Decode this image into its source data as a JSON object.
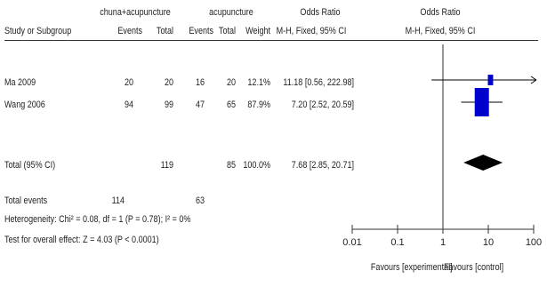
{
  "header": {
    "group1": "chuna+acupuncture",
    "group2": "acupuncture",
    "or_title_left": "Odds Ratio",
    "or_title_right": "Odds Ratio",
    "col_study": "Study or Subgroup",
    "col_events1": "Events",
    "col_total1": "Total",
    "col_events2": "Events",
    "col_total2": "Total",
    "col_weight": "Weight",
    "col_method_left": "M-H, Fixed, 95% CI",
    "col_method_right": "M-H, Fixed, 95% CI"
  },
  "studies": [
    {
      "name": "Ma 2009",
      "events1": "20",
      "total1": "20",
      "events2": "16",
      "total2": "20",
      "weight": "12.1%",
      "ci_text": "11.18 [0.56, 222.98]"
    },
    {
      "name": "Wang 2006",
      "events1": "94",
      "total1": "99",
      "events2": "47",
      "total2": "65",
      "weight": "87.9%",
      "ci_text": "7.20 [2.52, 20.59]"
    }
  ],
  "total": {
    "label": "Total (95% CI)",
    "total1": "119",
    "total2": "85",
    "weight": "100.0%",
    "ci_text": "7.68 [2.85, 20.71]"
  },
  "total_events": {
    "label": "Total events",
    "events1": "114",
    "events2": "63"
  },
  "heterogeneity": "Heterogeneity: Chi² = 0.08, df = 1 (P = 0.78); I² = 0%",
  "overall_effect": "Test for overall effect: Z = 4.03 (P < 0.0001)",
  "favours_left": "Favours [experimental]",
  "favours_right": "Favours [control]",
  "chart_data": {
    "type": "forest",
    "x_scale": "log",
    "xlim": [
      0.01,
      100
    ],
    "ticks": [
      0.01,
      0.1,
      1,
      10,
      100
    ],
    "tick_labels": [
      "0.01",
      "0.1",
      "1",
      "10",
      "100"
    ],
    "null_line": 1,
    "studies": [
      {
        "name": "Ma 2009",
        "or": 11.18,
        "lower": 0.56,
        "upper": 222.98,
        "weight": 12.1
      },
      {
        "name": "Wang 2006",
        "or": 7.2,
        "lower": 2.52,
        "upper": 20.59,
        "weight": 87.9
      }
    ],
    "pooled": {
      "or": 7.68,
      "lower": 2.85,
      "upper": 20.71
    },
    "colors": {
      "study": "#0000cc",
      "pooled": "#000000",
      "axis": "#333333"
    }
  }
}
